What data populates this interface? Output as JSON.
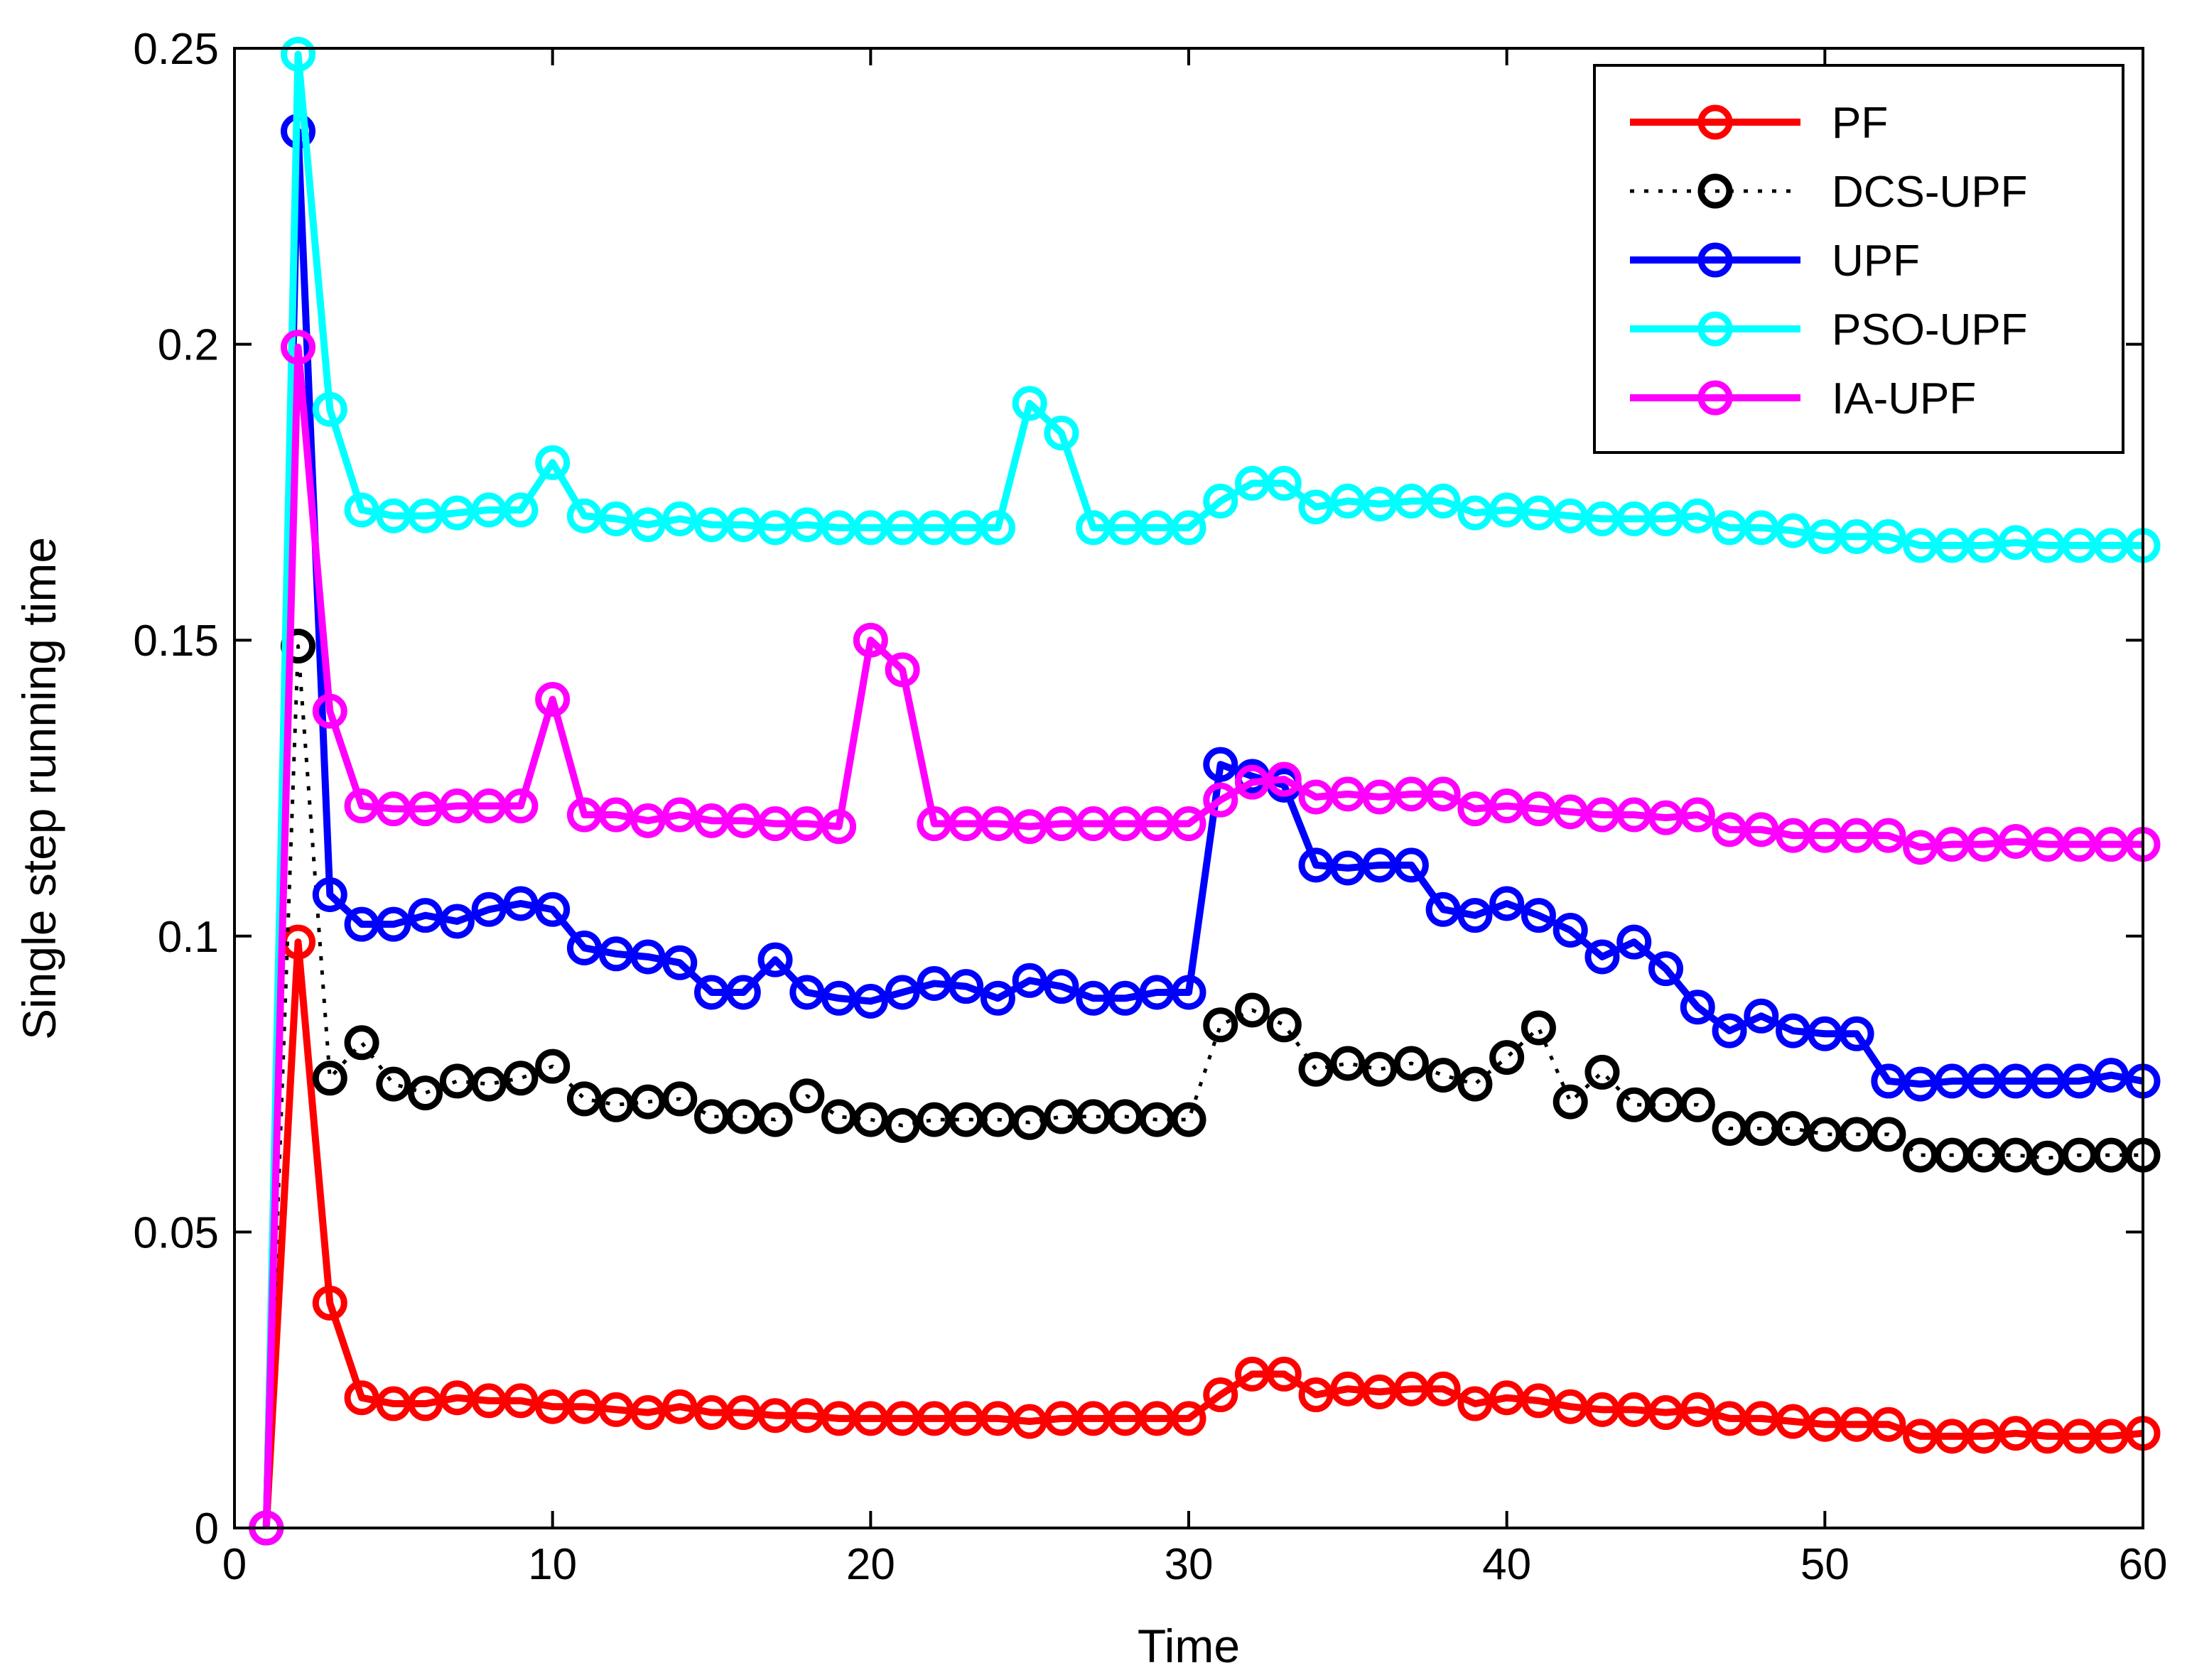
{
  "chart_data": {
    "type": "line",
    "title": "",
    "xlabel": "Time",
    "ylabel": "Single step running time",
    "xlim": [
      0,
      60
    ],
    "ylim": [
      0,
      0.25
    ],
    "xticks": [
      0,
      10,
      20,
      30,
      40,
      50,
      60
    ],
    "xtick_labels": [
      "0",
      "10",
      "20",
      "30",
      "40",
      "50",
      "60"
    ],
    "yticks": [
      0,
      0.05,
      0.1,
      0.15,
      0.2,
      0.25
    ],
    "ytick_labels": [
      "0",
      "0.05",
      "0.1",
      "0.15",
      "0.2",
      "0.25"
    ],
    "grid": false,
    "legend_position": "top-right",
    "x": [
      1,
      2,
      3,
      4,
      5,
      6,
      7,
      8,
      9,
      10,
      11,
      12,
      13,
      14,
      15,
      16,
      17,
      18,
      19,
      20,
      21,
      22,
      23,
      24,
      25,
      26,
      27,
      28,
      29,
      30,
      31,
      32,
      33,
      34,
      35,
      36,
      37,
      38,
      39,
      40,
      41,
      42,
      43,
      44,
      45,
      46,
      47,
      48,
      49,
      50,
      51,
      52,
      53,
      54,
      55,
      56,
      57,
      58,
      59,
      60
    ],
    "series": [
      {
        "name": "PF",
        "color": "#ff0000",
        "style": "solid",
        "values": [
          0,
          0.099,
          0.038,
          0.022,
          0.021,
          0.021,
          0.022,
          0.0215,
          0.0215,
          0.0205,
          0.0205,
          0.02,
          0.0195,
          0.0205,
          0.0195,
          0.0195,
          0.019,
          0.019,
          0.0185,
          0.0185,
          0.0185,
          0.0185,
          0.0185,
          0.0185,
          0.018,
          0.0185,
          0.0185,
          0.0185,
          0.0185,
          0.0185,
          0.0225,
          0.026,
          0.026,
          0.0225,
          0.0235,
          0.023,
          0.0235,
          0.0235,
          0.021,
          0.022,
          0.0215,
          0.0205,
          0.02,
          0.02,
          0.0195,
          0.02,
          0.0185,
          0.0185,
          0.018,
          0.0175,
          0.0175,
          0.0175,
          0.0155,
          0.0155,
          0.0155,
          0.016,
          0.0155,
          0.0155,
          0.0155,
          0.016
        ]
      },
      {
        "name": "DCS-UPF",
        "color": "#000000",
        "style": "dotted",
        "values": [
          0,
          0.149,
          0.076,
          0.082,
          0.075,
          0.0735,
          0.0755,
          0.075,
          0.076,
          0.078,
          0.0725,
          0.0715,
          0.072,
          0.0725,
          0.0695,
          0.0695,
          0.069,
          0.073,
          0.0695,
          0.069,
          0.068,
          0.069,
          0.069,
          0.069,
          0.0685,
          0.0695,
          0.0695,
          0.0695,
          0.069,
          0.069,
          0.085,
          0.0875,
          0.085,
          0.0775,
          0.0785,
          0.0775,
          0.0785,
          0.0765,
          0.075,
          0.0795,
          0.0845,
          0.072,
          0.077,
          0.0715,
          0.0715,
          0.0715,
          0.0675,
          0.0675,
          0.0675,
          0.0665,
          0.0665,
          0.0665,
          0.063,
          0.063,
          0.063,
          0.063,
          0.0625,
          0.063,
          0.063,
          0.063
        ]
      },
      {
        "name": "UPF",
        "color": "#0000ff",
        "style": "solid",
        "values": [
          0,
          0.236,
          0.107,
          0.102,
          0.102,
          0.1035,
          0.1025,
          0.1045,
          0.1055,
          0.1045,
          0.098,
          0.097,
          0.0965,
          0.0955,
          0.0905,
          0.0905,
          0.096,
          0.0905,
          0.0895,
          0.089,
          0.0905,
          0.092,
          0.0915,
          0.0895,
          0.0925,
          0.0915,
          0.0895,
          0.0895,
          0.0905,
          0.0905,
          0.129,
          0.127,
          0.1255,
          0.112,
          0.1115,
          0.112,
          0.112,
          0.1045,
          0.1035,
          0.1055,
          0.1035,
          0.101,
          0.0965,
          0.099,
          0.0945,
          0.088,
          0.084,
          0.0865,
          0.084,
          0.0835,
          0.0835,
          0.0755,
          0.075,
          0.0755,
          0.0755,
          0.0755,
          0.0755,
          0.0755,
          0.0765,
          0.0755
        ]
      },
      {
        "name": "PSO-UPF",
        "color": "#00ffff",
        "style": "solid",
        "values": [
          0,
          0.249,
          0.189,
          0.172,
          0.171,
          0.171,
          0.1715,
          0.172,
          0.172,
          0.18,
          0.171,
          0.1705,
          0.1695,
          0.1705,
          0.1695,
          0.1695,
          0.169,
          0.1695,
          0.169,
          0.169,
          0.169,
          0.169,
          0.169,
          0.169,
          0.19,
          0.185,
          0.169,
          0.169,
          0.169,
          0.169,
          0.1735,
          0.1765,
          0.1765,
          0.1725,
          0.1735,
          0.173,
          0.1735,
          0.1735,
          0.1715,
          0.172,
          0.1715,
          0.171,
          0.1705,
          0.1705,
          0.1705,
          0.171,
          0.169,
          0.169,
          0.1685,
          0.1675,
          0.1675,
          0.1675,
          0.166,
          0.166,
          0.166,
          0.1665,
          0.166,
          0.166,
          0.166,
          0.166
        ]
      },
      {
        "name": "IA-UPF",
        "color": "#ff00ff",
        "style": "solid",
        "values": [
          0,
          0.1995,
          0.138,
          0.122,
          0.1215,
          0.1215,
          0.122,
          0.122,
          0.122,
          0.14,
          0.1205,
          0.1205,
          0.1195,
          0.1205,
          0.1195,
          0.1195,
          0.119,
          0.119,
          0.1185,
          0.15,
          0.145,
          0.119,
          0.119,
          0.119,
          0.1185,
          0.119,
          0.119,
          0.119,
          0.119,
          0.119,
          0.123,
          0.126,
          0.1265,
          0.1235,
          0.124,
          0.1235,
          0.124,
          0.124,
          0.1215,
          0.122,
          0.1215,
          0.121,
          0.1205,
          0.1205,
          0.12,
          0.1205,
          0.118,
          0.118,
          0.117,
          0.117,
          0.117,
          0.117,
          0.115,
          0.1155,
          0.1155,
          0.116,
          0.1155,
          0.1155,
          0.1155,
          0.1155
        ]
      }
    ]
  }
}
